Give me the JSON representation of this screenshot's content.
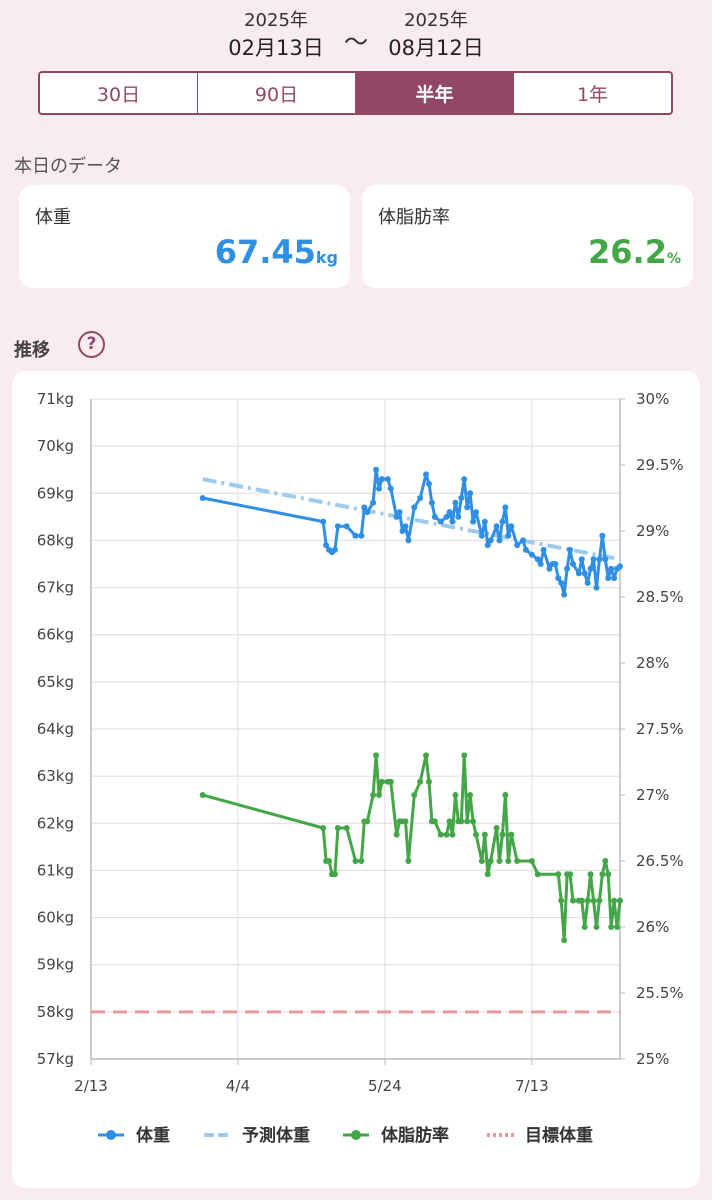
{
  "date_range": {
    "start_year": "2025年",
    "start_date": "02月13日",
    "separator": "〜",
    "end_year": "2025年",
    "end_date": "08月12日"
  },
  "range_tabs": [
    {
      "label": "30日",
      "active": false
    },
    {
      "label": "90日",
      "active": false
    },
    {
      "label": "半年",
      "active": true
    },
    {
      "label": "1年",
      "active": false
    }
  ],
  "today": {
    "section_label": "本日のデータ",
    "weight": {
      "title": "体重",
      "value": "67.45",
      "unit": "kg",
      "color": "#2f8fe4"
    },
    "body_fat": {
      "title": "体脂肪率",
      "value": "26.2",
      "unit": "%",
      "color": "#43a748"
    }
  },
  "trend": {
    "section_label": "推移",
    "help_icon": "question-mark-icon",
    "help_symbol": "?"
  },
  "chart_data": {
    "type": "line",
    "x_ticks": [
      "2/13",
      "4/4",
      "5/24",
      "7/13"
    ],
    "y_left": {
      "range": [
        57,
        71
      ],
      "ticks": [
        "57kg",
        "58kg",
        "59kg",
        "60kg",
        "61kg",
        "62kg",
        "63kg",
        "64kg",
        "65kg",
        "66kg",
        "67kg",
        "68kg",
        "69kg",
        "70kg",
        "71kg"
      ]
    },
    "y_right": {
      "range": [
        25,
        30
      ],
      "ticks": [
        "25%",
        "25.5%",
        "26%",
        "26.5%",
        "27%",
        "27.5%",
        "28%",
        "28.5%",
        "29%",
        "29.5%",
        "30%"
      ]
    },
    "grid": true,
    "legend_position": "bottom",
    "series": [
      {
        "name": "体重",
        "axis": "left",
        "color": "#2f8fe4",
        "points": [
          [
            "2025-03-23",
            68.9
          ],
          [
            "2025-05-03",
            68.4
          ],
          [
            "2025-05-04",
            67.9
          ],
          [
            "2025-05-05",
            67.8
          ],
          [
            "2025-05-06",
            67.75
          ],
          [
            "2025-05-07",
            67.8
          ],
          [
            "2025-05-08",
            68.3
          ],
          [
            "2025-05-11",
            68.3
          ],
          [
            "2025-05-14",
            68.1
          ],
          [
            "2025-05-16",
            68.1
          ],
          [
            "2025-05-17",
            68.7
          ],
          [
            "2025-05-18",
            68.6
          ],
          [
            "2025-05-20",
            68.8
          ],
          [
            "2025-05-21",
            69.5
          ],
          [
            "2025-05-22",
            69.1
          ],
          [
            "2025-05-23",
            69.3
          ],
          [
            "2025-05-25",
            69.3
          ],
          [
            "2025-05-26",
            69.1
          ],
          [
            "2025-05-28",
            68.5
          ],
          [
            "2025-05-29",
            68.6
          ],
          [
            "2025-05-30",
            68.2
          ],
          [
            "2025-05-31",
            68.3
          ],
          [
            "2025-06-01",
            68.0
          ],
          [
            "2025-06-03",
            68.7
          ],
          [
            "2025-06-05",
            68.9
          ],
          [
            "2025-06-07",
            69.4
          ],
          [
            "2025-06-08",
            69.2
          ],
          [
            "2025-06-09",
            68.8
          ],
          [
            "2025-06-10",
            68.5
          ],
          [
            "2025-06-12",
            68.4
          ],
          [
            "2025-06-14",
            68.5
          ],
          [
            "2025-06-15",
            68.6
          ],
          [
            "2025-06-16",
            68.4
          ],
          [
            "2025-06-17",
            68.8
          ],
          [
            "2025-06-18",
            68.5
          ],
          [
            "2025-06-19",
            68.9
          ],
          [
            "2025-06-20",
            69.3
          ],
          [
            "2025-06-21",
            68.7
          ],
          [
            "2025-06-22",
            69.0
          ],
          [
            "2025-06-23",
            68.4
          ],
          [
            "2025-06-24",
            68.6
          ],
          [
            "2025-06-26",
            68.1
          ],
          [
            "2025-06-27",
            68.4
          ],
          [
            "2025-06-28",
            67.9
          ],
          [
            "2025-06-29",
            68.0
          ],
          [
            "2025-07-01",
            68.3
          ],
          [
            "2025-07-02",
            68.0
          ],
          [
            "2025-07-03",
            68.4
          ],
          [
            "2025-07-04",
            68.7
          ],
          [
            "2025-07-05",
            68.1
          ],
          [
            "2025-07-06",
            68.3
          ],
          [
            "2025-07-08",
            67.9
          ],
          [
            "2025-07-10",
            68.0
          ],
          [
            "2025-07-11",
            67.8
          ],
          [
            "2025-07-13",
            67.7
          ],
          [
            "2025-07-15",
            67.6
          ],
          [
            "2025-07-16",
            67.5
          ],
          [
            "2025-07-17",
            67.8
          ],
          [
            "2025-07-19",
            67.4
          ],
          [
            "2025-07-20",
            67.5
          ],
          [
            "2025-07-21",
            67.5
          ],
          [
            "2025-07-22",
            67.2
          ],
          [
            "2025-07-23",
            67.1
          ],
          [
            "2025-07-24",
            66.85
          ],
          [
            "2025-07-25",
            67.4
          ],
          [
            "2025-07-26",
            67.8
          ],
          [
            "2025-07-27",
            67.5
          ],
          [
            "2025-07-29",
            67.3
          ],
          [
            "2025-07-30",
            67.6
          ],
          [
            "2025-07-31",
            67.3
          ],
          [
            "2025-08-01",
            67.1
          ],
          [
            "2025-08-02",
            67.4
          ],
          [
            "2025-08-03",
            67.6
          ],
          [
            "2025-08-04",
            67.0
          ],
          [
            "2025-08-05",
            67.6
          ],
          [
            "2025-08-06",
            68.1
          ],
          [
            "2025-08-07",
            67.6
          ],
          [
            "2025-08-08",
            67.2
          ],
          [
            "2025-08-09",
            67.4
          ],
          [
            "2025-08-10",
            67.2
          ],
          [
            "2025-08-11",
            67.4
          ],
          [
            "2025-08-12",
            67.45
          ]
        ]
      },
      {
        "name": "予測体重",
        "axis": "left",
        "color": "#9ccbee",
        "style": "dashdot",
        "points": [
          [
            "2025-03-23",
            69.3
          ],
          [
            "2025-08-12",
            67.6
          ]
        ]
      },
      {
        "name": "体脂肪率",
        "axis": "right",
        "color": "#43a748",
        "points": [
          [
            "2025-03-23",
            27.0
          ],
          [
            "2025-05-03",
            26.75
          ],
          [
            "2025-05-04",
            26.5
          ],
          [
            "2025-05-05",
            26.5
          ],
          [
            "2025-05-06",
            26.4
          ],
          [
            "2025-05-07",
            26.4
          ],
          [
            "2025-05-08",
            26.75
          ],
          [
            "2025-05-11",
            26.75
          ],
          [
            "2025-05-14",
            26.5
          ],
          [
            "2025-05-16",
            26.5
          ],
          [
            "2025-05-17",
            26.8
          ],
          [
            "2025-05-18",
            26.8
          ],
          [
            "2025-05-20",
            27.0
          ],
          [
            "2025-05-21",
            27.3
          ],
          [
            "2025-05-22",
            27.0
          ],
          [
            "2025-05-23",
            27.1
          ],
          [
            "2025-05-25",
            27.1
          ],
          [
            "2025-05-26",
            27.1
          ],
          [
            "2025-05-28",
            26.7
          ],
          [
            "2025-05-29",
            26.8
          ],
          [
            "2025-05-30",
            26.8
          ],
          [
            "2025-05-31",
            26.8
          ],
          [
            "2025-06-01",
            26.5
          ],
          [
            "2025-06-03",
            27.0
          ],
          [
            "2025-06-05",
            27.1
          ],
          [
            "2025-06-07",
            27.3
          ],
          [
            "2025-06-08",
            27.1
          ],
          [
            "2025-06-09",
            26.8
          ],
          [
            "2025-06-10",
            26.8
          ],
          [
            "2025-06-12",
            26.7
          ],
          [
            "2025-06-14",
            26.7
          ],
          [
            "2025-06-15",
            26.8
          ],
          [
            "2025-06-16",
            26.7
          ],
          [
            "2025-06-17",
            27.0
          ],
          [
            "2025-06-18",
            26.8
          ],
          [
            "2025-06-19",
            26.8
          ],
          [
            "2025-06-20",
            27.3
          ],
          [
            "2025-06-21",
            26.8
          ],
          [
            "2025-06-22",
            27.0
          ],
          [
            "2025-06-23",
            26.8
          ],
          [
            "2025-06-24",
            26.7
          ],
          [
            "2025-06-26",
            26.5
          ],
          [
            "2025-06-27",
            26.7
          ],
          [
            "2025-06-28",
            26.4
          ],
          [
            "2025-06-29",
            26.5
          ],
          [
            "2025-07-01",
            26.75
          ],
          [
            "2025-07-02",
            26.5
          ],
          [
            "2025-07-03",
            26.7
          ],
          [
            "2025-07-04",
            27.0
          ],
          [
            "2025-07-05",
            26.5
          ],
          [
            "2025-07-06",
            26.7
          ],
          [
            "2025-07-08",
            26.5
          ],
          [
            "2025-07-13",
            26.5
          ],
          [
            "2025-07-15",
            26.4
          ],
          [
            "2025-07-22",
            26.4
          ],
          [
            "2025-07-23",
            26.2
          ],
          [
            "2025-07-24",
            25.9
          ],
          [
            "2025-07-25",
            26.4
          ],
          [
            "2025-07-26",
            26.4
          ],
          [
            "2025-07-27",
            26.2
          ],
          [
            "2025-07-29",
            26.2
          ],
          [
            "2025-07-30",
            26.2
          ],
          [
            "2025-07-31",
            26.0
          ],
          [
            "2025-08-01",
            26.2
          ],
          [
            "2025-08-02",
            26.4
          ],
          [
            "2025-08-03",
            26.2
          ],
          [
            "2025-08-04",
            26.0
          ],
          [
            "2025-08-05",
            26.2
          ],
          [
            "2025-08-06",
            26.4
          ],
          [
            "2025-08-07",
            26.5
          ],
          [
            "2025-08-08",
            26.4
          ],
          [
            "2025-08-09",
            26.0
          ],
          [
            "2025-08-10",
            26.2
          ],
          [
            "2025-08-11",
            26.0
          ],
          [
            "2025-08-12",
            26.2
          ]
        ]
      },
      {
        "name": "目標体重",
        "axis": "left",
        "color": "#e79a9a",
        "style": "dashed",
        "value": 58
      }
    ],
    "x_range": [
      "2025-02-13",
      "2025-08-12"
    ]
  }
}
